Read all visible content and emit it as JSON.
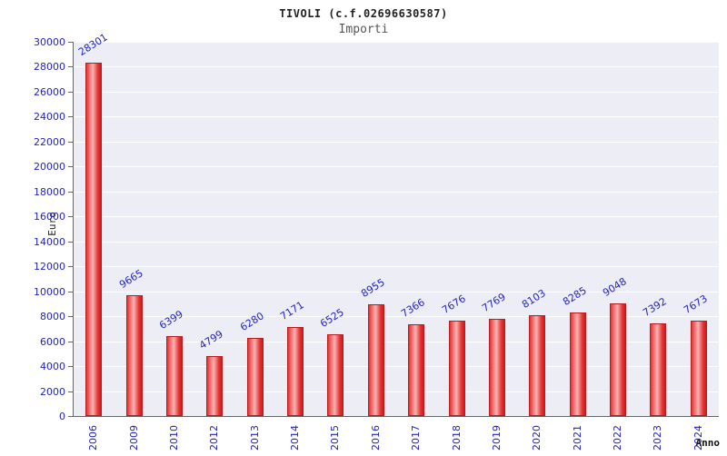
{
  "header": {
    "title": "TIVOLI (c.f.02696630587)",
    "subtitle": "Importi"
  },
  "chart_data": {
    "type": "bar",
    "title": "TIVOLI (c.f.02696630587)",
    "subtitle": "Importi",
    "xlabel": "Anno",
    "ylabel": "Euro",
    "categories": [
      "2006",
      "2009",
      "2010",
      "2012",
      "2013",
      "2014",
      "2015",
      "2016",
      "2017",
      "2018",
      "2019",
      "2020",
      "2021",
      "2022",
      "2023",
      "2024"
    ],
    "values": [
      28301,
      9665,
      6399,
      4799,
      6280,
      7171,
      6525,
      8955,
      7366,
      7676,
      7769,
      8103,
      8285,
      9048,
      7392,
      7673
    ],
    "ylim": [
      0,
      30000
    ],
    "ytick_step": 2000,
    "grid": true,
    "legend": "none",
    "colors": {
      "bar_dark": "#c81e1e",
      "bar_main": "#e63232",
      "bar_highlight": "#f9b4b4",
      "tick_label": "#2323bf",
      "value_label": "#2323bf",
      "plot_background": "#ededf5",
      "gridline": "#ffffff"
    }
  }
}
